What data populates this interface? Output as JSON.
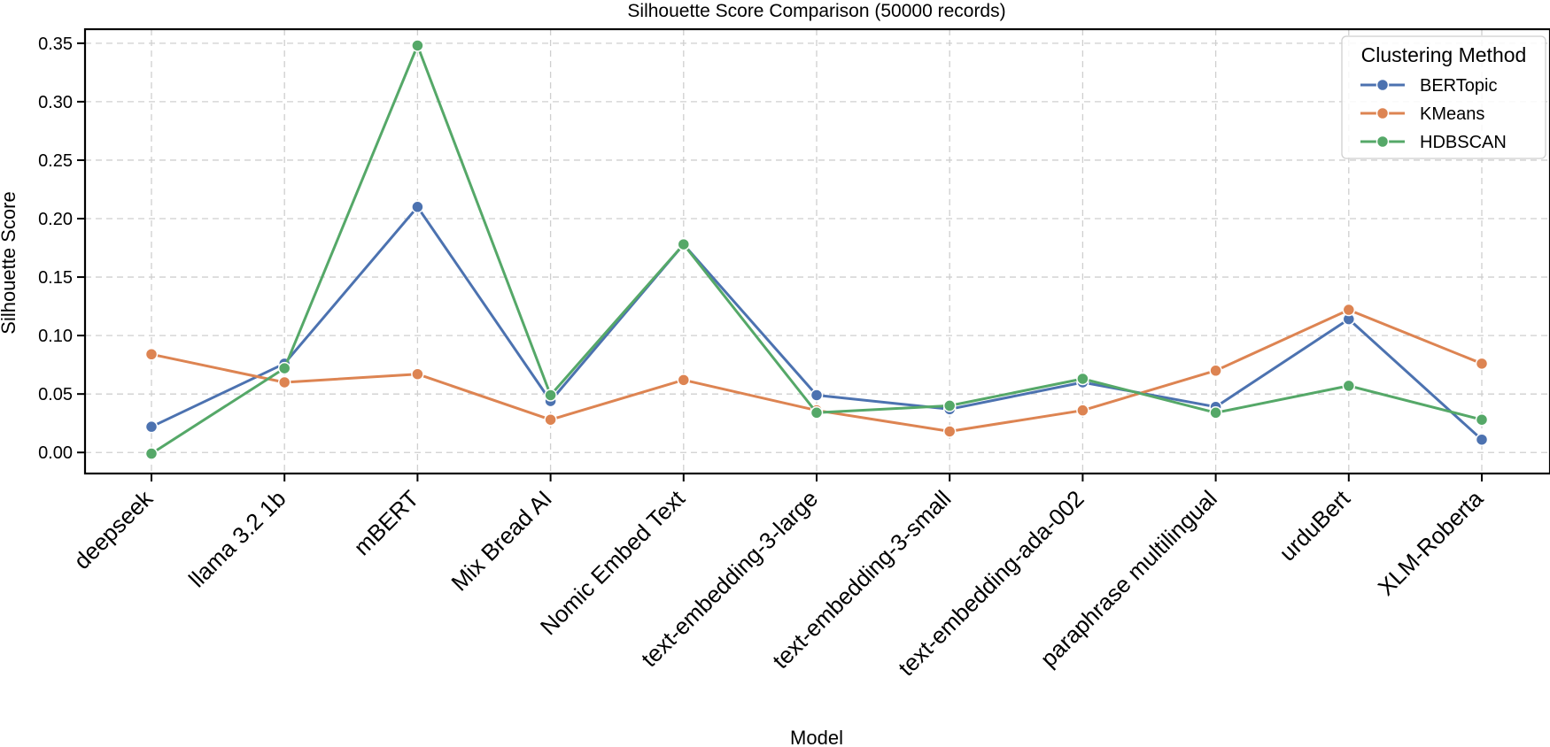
{
  "chart_data": {
    "type": "line",
    "title": "Silhouette Score Comparison (50000 records)",
    "xlabel": "Model",
    "ylabel": "Silhouette Score",
    "ylim": [
      -0.018,
      0.362
    ],
    "yticks": [
      0.0,
      0.05,
      0.1,
      0.15,
      0.2,
      0.25,
      0.3,
      0.35
    ],
    "ytick_labels": [
      "0.00",
      "0.05",
      "0.10",
      "0.15",
      "0.20",
      "0.25",
      "0.30",
      "0.35"
    ],
    "grid": true,
    "categories": [
      "deepseek",
      "llama 3.2 1b",
      "mBERT",
      "Mix Bread AI",
      "Nomic Embed Text",
      "text-embedding-3-large",
      "text-embedding-3-small",
      "text-embedding-ada-002",
      "paraphrase multilingual",
      "urduBert",
      "XLM-Roberta"
    ],
    "legend": {
      "title": "Clustering Method",
      "position": "top-right"
    },
    "series": [
      {
        "name": "BERTopic",
        "color": "#4c72b0",
        "values": [
          0.022,
          0.076,
          0.21,
          0.044,
          0.178,
          0.049,
          0.037,
          0.06,
          0.039,
          0.114,
          0.011
        ]
      },
      {
        "name": "KMeans",
        "color": "#dd8452",
        "values": [
          0.084,
          0.06,
          0.067,
          0.028,
          0.062,
          0.036,
          0.018,
          0.036,
          0.07,
          0.122,
          0.076
        ]
      },
      {
        "name": "HDBSCAN",
        "color": "#55a868",
        "values": [
          -0.001,
          0.072,
          0.348,
          0.049,
          0.178,
          0.034,
          0.04,
          0.063,
          0.034,
          0.057,
          0.028
        ]
      }
    ]
  }
}
